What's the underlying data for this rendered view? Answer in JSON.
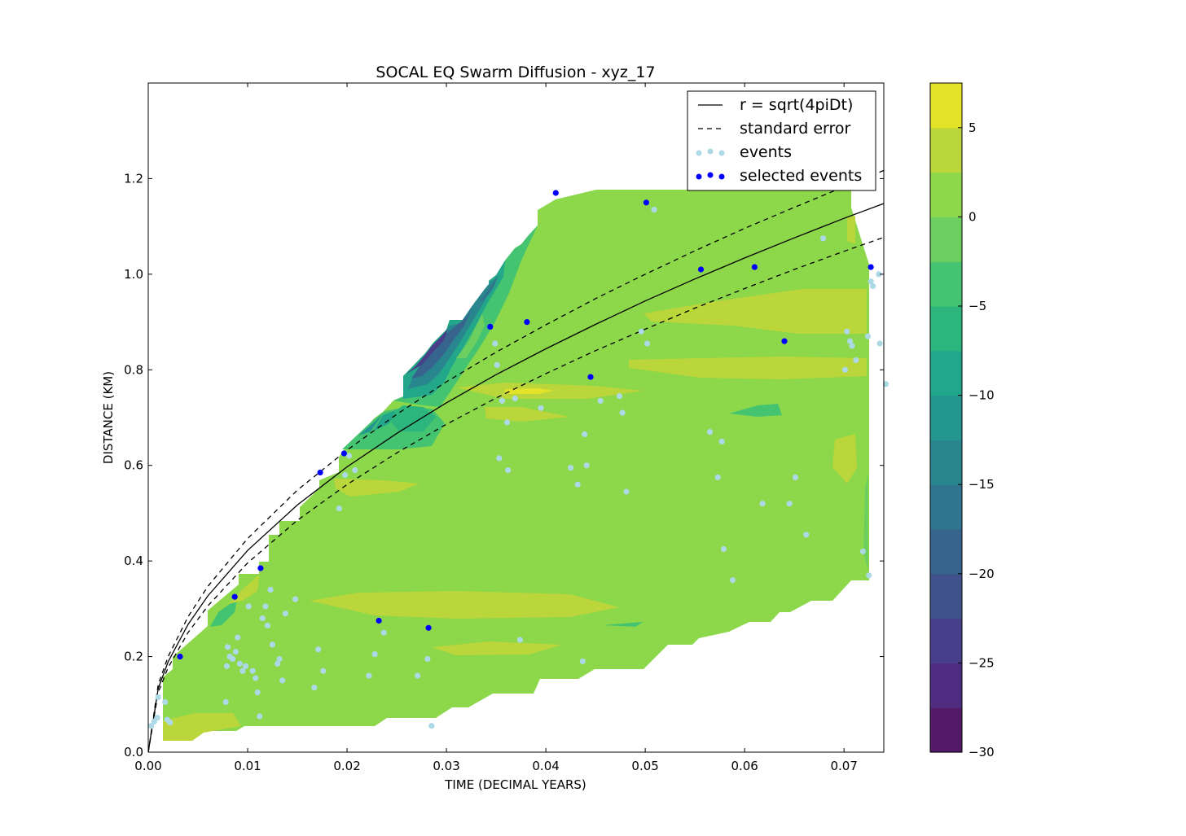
{
  "chart_data": {
    "type": "scatter",
    "title": "SOCAL EQ Swarm Diffusion - xyz_17",
    "xlabel": "TIME (DECIMAL YEARS)",
    "ylabel": "DISTANCE (KM)",
    "xlim": [
      0.0,
      0.074
    ],
    "ylim": [
      0.0,
      1.4
    ],
    "xticks": [
      0.0,
      0.01,
      0.02,
      0.03,
      0.04,
      0.05,
      0.06,
      0.07
    ],
    "xtick_labels": [
      "0.00",
      "0.01",
      "0.02",
      "0.03",
      "0.04",
      "0.05",
      "0.06",
      "0.07"
    ],
    "yticks": [
      0.0,
      0.2,
      0.4,
      0.6,
      0.8,
      1.0,
      1.2
    ],
    "ytick_labels": [
      "0.0",
      "0.2",
      "0.4",
      "0.6",
      "0.8",
      "1.0",
      "1.2"
    ],
    "grid": false,
    "legend_position": "top-right",
    "legend": [
      {
        "label": "r = sqrt(4piDt)",
        "kind": "solid-line"
      },
      {
        "label": "standard error",
        "kind": "dashed-line"
      },
      {
        "label": "events",
        "kind": "points",
        "color": "#add8e6"
      },
      {
        "label": "selected events",
        "kind": "points",
        "color": "#0000ff"
      }
    ],
    "colorbar": {
      "levels": [
        -30,
        -27.5,
        -25,
        -22.5,
        -20,
        -17.5,
        -15,
        -12.5,
        -10,
        -7.5,
        -5,
        -2.5,
        0,
        2.5,
        5,
        7.5
      ],
      "tick_values": [
        -30,
        -25,
        -20,
        -15,
        -10,
        -5,
        0,
        5
      ],
      "tick_labels": [
        "−30",
        "−25",
        "−20",
        "−15",
        "−10",
        "−5",
        "0",
        "5"
      ],
      "colors": [
        "#541a67",
        "#4e2c7f",
        "#473f89",
        "#40528c",
        "#37648c",
        "#30758d",
        "#2a868e",
        "#249690",
        "#23a78a",
        "#2cb67e",
        "#44c470",
        "#6ccf5f",
        "#8dd74a",
        "#bad63b",
        "#e4e32a"
      ]
    },
    "fit_curve": {
      "label": "r = sqrt(4piDt)",
      "x": [
        0.0,
        0.001,
        0.002,
        0.004,
        0.006,
        0.01,
        0.015,
        0.02,
        0.025,
        0.03,
        0.035,
        0.04,
        0.045,
        0.05,
        0.055,
        0.06,
        0.065,
        0.07,
        0.074
      ],
      "y": [
        0.0,
        0.133,
        0.189,
        0.267,
        0.327,
        0.422,
        0.517,
        0.597,
        0.667,
        0.731,
        0.79,
        0.844,
        0.895,
        0.944,
        0.99,
        1.034,
        1.076,
        1.117,
        1.148
      ]
    },
    "error_upper": {
      "label": "standard error",
      "x": [
        0.0,
        0.001,
        0.002,
        0.004,
        0.006,
        0.01,
        0.015,
        0.02,
        0.025,
        0.03,
        0.035,
        0.04,
        0.045,
        0.05,
        0.055,
        0.06,
        0.065,
        0.07,
        0.074
      ],
      "y": [
        0.0,
        0.141,
        0.2,
        0.283,
        0.347,
        0.447,
        0.548,
        0.632,
        0.707,
        0.775,
        0.837,
        0.894,
        0.949,
        1.0,
        1.049,
        1.096,
        1.14,
        1.183,
        1.217
      ]
    },
    "error_lower": {
      "label": "standard error",
      "x": [
        0.0,
        0.001,
        0.002,
        0.004,
        0.006,
        0.01,
        0.015,
        0.02,
        0.025,
        0.03,
        0.035,
        0.04,
        0.045,
        0.05,
        0.055,
        0.06,
        0.065,
        0.07,
        0.074
      ],
      "y": [
        0.0,
        0.125,
        0.177,
        0.25,
        0.306,
        0.396,
        0.485,
        0.56,
        0.626,
        0.686,
        0.741,
        0.792,
        0.84,
        0.885,
        0.929,
        0.97,
        1.01,
        1.048,
        1.077
      ]
    },
    "series": [
      {
        "name": "events",
        "color": "#add8e6",
        "x": [
          0.0003,
          0.0006,
          0.0009,
          0.001,
          0.0017,
          0.0019,
          0.0022,
          0.0078,
          0.0079,
          0.008,
          0.0082,
          0.0085,
          0.0088,
          0.009,
          0.0092,
          0.0095,
          0.0098,
          0.0101,
          0.0105,
          0.0108,
          0.011,
          0.0112,
          0.0115,
          0.0118,
          0.012,
          0.0123,
          0.0125,
          0.013,
          0.0132,
          0.0135,
          0.0138,
          0.0148,
          0.0167,
          0.0171,
          0.0176,
          0.0192,
          0.0198,
          0.0202,
          0.0208,
          0.0222,
          0.0228,
          0.0237,
          0.0271,
          0.0281,
          0.0285,
          0.0349,
          0.0351,
          0.0353,
          0.0356,
          0.0361,
          0.0362,
          0.0369,
          0.0374,
          0.0395,
          0.0425,
          0.0432,
          0.0437,
          0.0439,
          0.0441,
          0.0455,
          0.0474,
          0.0477,
          0.0481,
          0.0496,
          0.0502,
          0.0509,
          0.0565,
          0.0573,
          0.0577,
          0.0579,
          0.0588,
          0.0618,
          0.0645,
          0.0651,
          0.0662,
          0.0679,
          0.0681,
          0.0703,
          0.0706,
          0.0708,
          0.0712,
          0.0724,
          0.0727,
          0.0729,
          0.0735,
          0.0736,
          0.0742,
          0.0725,
          0.0719,
          0.0701
        ],
        "y": [
          0.055,
          0.064,
          0.072,
          0.115,
          0.105,
          0.068,
          0.062,
          0.105,
          0.18,
          0.22,
          0.2,
          0.195,
          0.21,
          0.24,
          0.185,
          0.17,
          0.18,
          0.305,
          0.17,
          0.155,
          0.125,
          0.075,
          0.28,
          0.305,
          0.265,
          0.34,
          0.225,
          0.185,
          0.195,
          0.15,
          0.29,
          0.32,
          0.135,
          0.215,
          0.17,
          0.51,
          0.58,
          0.62,
          0.59,
          0.16,
          0.205,
          0.25,
          0.16,
          0.195,
          0.055,
          0.855,
          0.81,
          0.615,
          0.735,
          0.69,
          0.59,
          0.74,
          0.235,
          0.72,
          0.595,
          0.56,
          0.19,
          0.665,
          0.6,
          0.735,
          0.745,
          0.71,
          0.545,
          0.88,
          0.855,
          1.135,
          0.67,
          0.575,
          0.65,
          0.425,
          0.36,
          0.52,
          0.52,
          0.575,
          0.455,
          1.075,
          1.18,
          0.88,
          0.86,
          0.85,
          0.82,
          0.87,
          0.985,
          0.975,
          1.0,
          0.855,
          0.77,
          0.37,
          0.42,
          0.8
        ],
        "selected_x": [],
        "selected_y": []
      },
      {
        "name": "selected events",
        "color": "#0000ff",
        "x": [
          0.0032,
          0.0087,
          0.0113,
          0.0173,
          0.0197,
          0.0232,
          0.0282,
          0.0344,
          0.0381,
          0.041,
          0.0445,
          0.0501,
          0.0556,
          0.061,
          0.064,
          0.07,
          0.0727
        ],
        "y": [
          0.2,
          0.325,
          0.385,
          0.585,
          0.625,
          0.275,
          0.26,
          0.89,
          0.9,
          1.17,
          0.785,
          1.15,
          1.01,
          1.015,
          0.86,
          1.195,
          1.015
        ]
      }
    ]
  }
}
